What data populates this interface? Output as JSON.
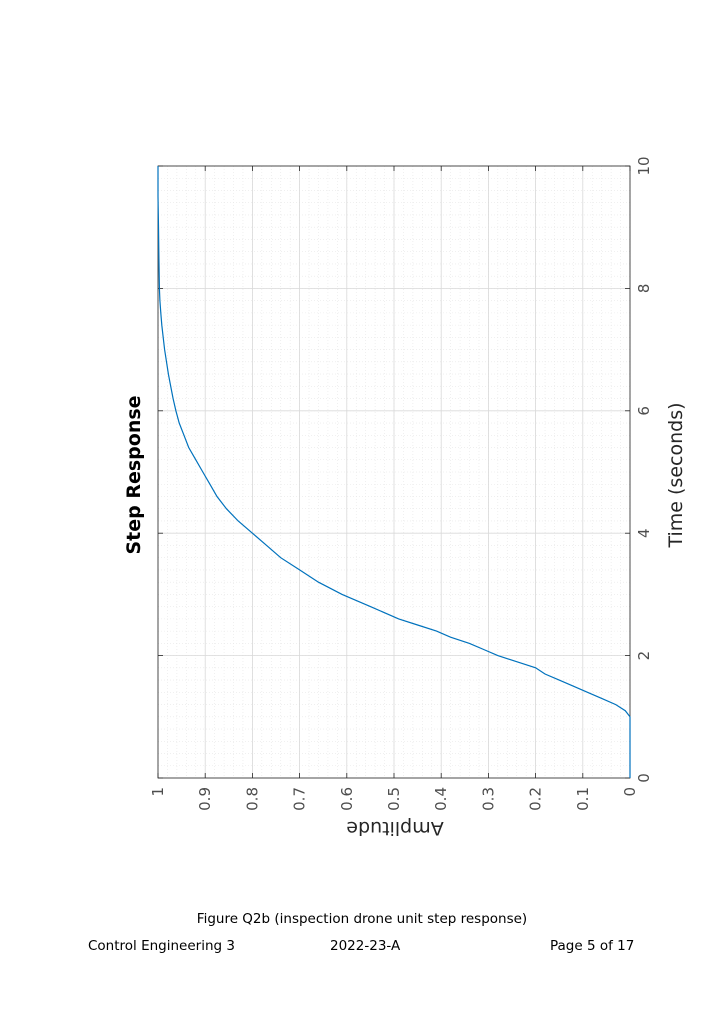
{
  "chart_data": {
    "type": "line",
    "title": "Step Response",
    "xlabel": "Time (seconds)",
    "ylabel": "Amplitude",
    "xlim": [
      0,
      10
    ],
    "ylim": [
      0,
      1
    ],
    "xticks": [
      0,
      2,
      4,
      6,
      8,
      10
    ],
    "yticks": [
      0,
      0.1,
      0.2,
      0.3,
      0.4,
      0.5,
      0.6,
      0.7,
      0.8,
      0.9,
      1
    ],
    "xtick_labels": [
      "0",
      "2",
      "4",
      "6",
      "8",
      "10"
    ],
    "ytick_labels": [
      "0",
      "0.1",
      "0.2",
      "0.3",
      "0.4",
      "0.5",
      "0.6",
      "0.7",
      "0.8",
      "0.9",
      "1"
    ],
    "grid": true,
    "minor_grid": true,
    "orientation": "rotated 90 degrees clockwise on the page",
    "series": [
      {
        "color": "#0072BD",
        "x": [
          0,
          0.5,
          1.0,
          1.1,
          1.2,
          1.3,
          1.4,
          1.5,
          1.6,
          1.7,
          1.8,
          1.9,
          2.0,
          2.1,
          2.2,
          2.3,
          2.4,
          2.5,
          2.6,
          2.8,
          3.0,
          3.2,
          3.4,
          3.6,
          3.8,
          4.0,
          4.2,
          4.4,
          4.6,
          4.8,
          5.0,
          5.2,
          5.4,
          5.6,
          5.8,
          6.0,
          6.2,
          6.4,
          6.6,
          6.8,
          7.0,
          7.2,
          7.4,
          7.6,
          7.8,
          8.0,
          8.5,
          9.0,
          9.5,
          10.0
        ],
        "y": [
          0,
          0,
          0.0,
          0.01,
          0.03,
          0.06,
          0.09,
          0.12,
          0.15,
          0.18,
          0.2,
          0.24,
          0.28,
          0.31,
          0.34,
          0.38,
          0.41,
          0.45,
          0.49,
          0.55,
          0.61,
          0.66,
          0.7,
          0.74,
          0.77,
          0.8,
          0.83,
          0.855,
          0.875,
          0.89,
          0.905,
          0.92,
          0.935,
          0.945,
          0.955,
          0.962,
          0.968,
          0.973,
          0.978,
          0.982,
          0.986,
          0.989,
          0.992,
          0.994,
          0.996,
          0.997,
          0.998,
          0.999,
          1.0,
          1.0
        ]
      }
    ]
  },
  "footer": {
    "caption": "Figure Q2b (inspection drone unit step response)",
    "course": "Control Engineering 3",
    "code": "2022-23-A",
    "page": "Page  5 of 17"
  }
}
